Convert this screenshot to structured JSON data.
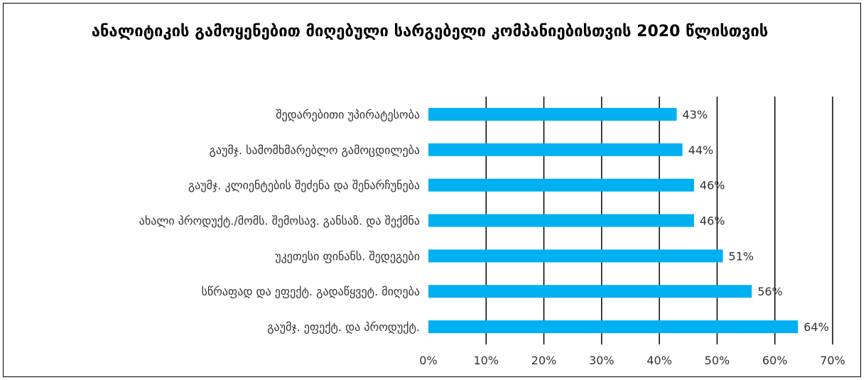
{
  "chart_data": {
    "type": "bar",
    "orientation": "horizontal",
    "title": "ანალიტიკის გამოყენებით მიღებული სარგებელი კომპანიებისთვის 2020 წლისთვის",
    "categories": [
      "შედარებითი უპირატესობა",
      "გაუმჯ. სამომხმარებლო გამოცდილება",
      "გაუმჯ. კლიენტების შეძენა და შენარჩუნება",
      "ახალი პროდუქტ./მომს. შემოსავ. განსაზ. და შექმნა",
      "უკეთესი ფინანს. შედეგები",
      "სწრაფად და ეფექტ. გადაწყვეტ. მიღება",
      "გაუმჯ. ეფექტ. და პროდუქტ."
    ],
    "values": [
      43,
      44,
      46,
      46,
      51,
      56,
      64
    ],
    "data_labels": [
      "43%",
      "44%",
      "46%",
      "46%",
      "51%",
      "56%",
      "64%"
    ],
    "xlim": [
      0,
      70
    ],
    "x_ticks": [
      0,
      10,
      20,
      30,
      40,
      50,
      60,
      70
    ],
    "x_tick_labels": [
      "0%",
      "10%",
      "20%",
      "30%",
      "40%",
      "50%",
      "60%",
      "70%"
    ],
    "grid": "vertical",
    "bar_color": "#00B0F0",
    "xlabel": "",
    "ylabel": ""
  }
}
